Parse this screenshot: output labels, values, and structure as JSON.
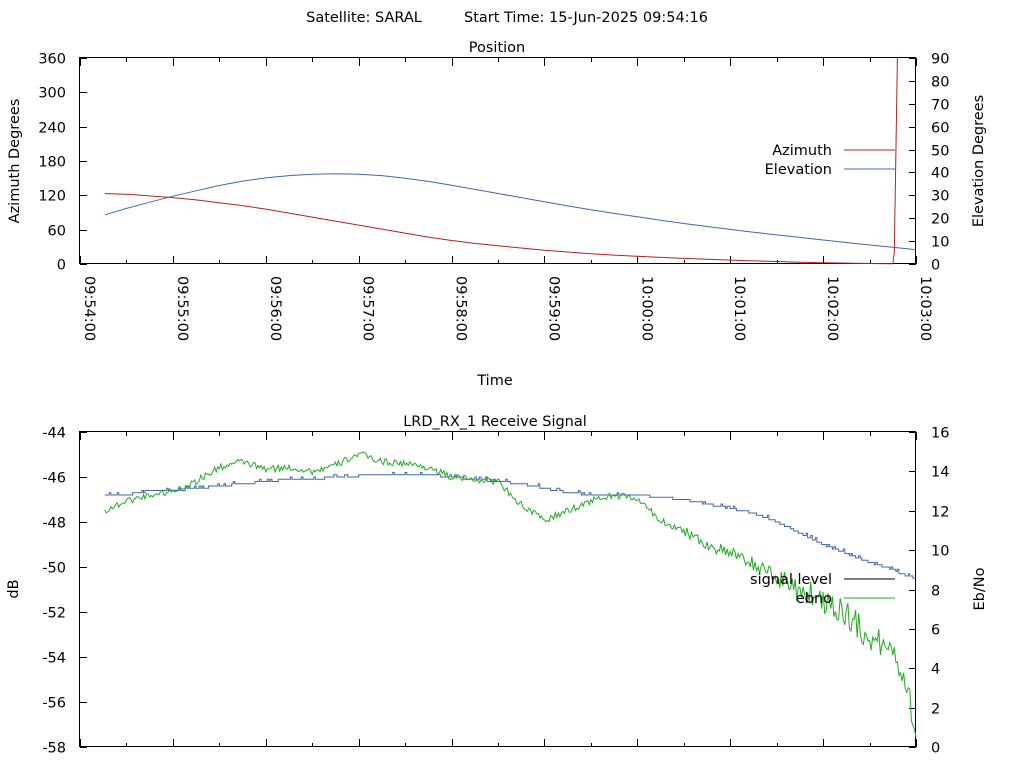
{
  "header": {
    "satellite": "Satellite: SARAL",
    "start_time": "Start Time: 15-Jun-2025 09:54:16"
  },
  "chart_data": [
    {
      "type": "line",
      "title": "Position",
      "xlabel": "Time",
      "ylabel": "Azimuth Degrees",
      "y2label": "Elevation Degrees",
      "xlim": [
        "09:54:00",
        "10:03:00"
      ],
      "ylim": [
        0,
        360
      ],
      "y2lim": [
        0,
        90
      ],
      "x_ticks": [
        "09:54:00",
        "09:55:00",
        "09:56:00",
        "09:57:00",
        "09:58:00",
        "09:59:00",
        "10:00:00",
        "10:01:00",
        "10:02:00",
        "10:03:00"
      ],
      "y_ticks": [
        "0",
        "60",
        "120",
        "180",
        "240",
        "300",
        "360"
      ],
      "y2_ticks": [
        "0",
        "10",
        "20",
        "30",
        "40",
        "50",
        "60",
        "70",
        "80",
        "90"
      ],
      "legend": "right",
      "grid": false,
      "series": [
        {
          "name": "Azimuth",
          "axis": "y",
          "color": "#b22222",
          "x": [
            "09:54:16",
            "09:54:30",
            "09:54:45",
            "09:55:00",
            "09:55:15",
            "09:55:30",
            "09:55:45",
            "09:56:00",
            "09:56:15",
            "09:56:30",
            "09:56:45",
            "09:57:00",
            "09:57:15",
            "09:57:30",
            "09:57:45",
            "09:58:00",
            "09:58:15",
            "09:58:30",
            "09:58:45",
            "09:59:00",
            "09:59:15",
            "09:59:30",
            "09:59:45",
            "10:00:00",
            "10:00:15",
            "10:00:30",
            "10:00:45",
            "10:01:00",
            "10:01:15",
            "10:01:30",
            "10:01:45",
            "10:02:00",
            "10:02:15",
            "10:02:30",
            "10:02:45",
            "10:02:46",
            "10:02:48"
          ],
          "y": [
            123,
            122,
            119,
            116,
            112,
            107,
            102,
            96,
            89,
            82,
            75,
            68,
            61,
            54,
            47,
            41,
            36,
            32,
            28,
            24,
            21,
            18,
            15.5,
            13.5,
            11.5,
            9.8,
            8.2,
            6.8,
            5.5,
            4.3,
            3.2,
            2.3,
            1.5,
            0.8,
            0.3,
            20,
            360
          ]
        },
        {
          "name": "Elevation",
          "axis": "y2",
          "color": "#4169aa",
          "x": [
            "09:54:16",
            "09:54:30",
            "09:54:45",
            "09:55:00",
            "09:55:15",
            "09:55:30",
            "09:55:45",
            "09:56:00",
            "09:56:15",
            "09:56:30",
            "09:56:45",
            "09:57:00",
            "09:57:15",
            "09:57:30",
            "09:57:45",
            "09:58:00",
            "09:58:15",
            "09:58:30",
            "09:58:45",
            "09:59:00",
            "09:59:15",
            "09:59:30",
            "09:59:45",
            "10:00:00",
            "10:00:15",
            "10:00:30",
            "10:00:45",
            "10:01:00",
            "10:01:15",
            "10:01:30",
            "10:01:45",
            "10:02:00",
            "10:02:15",
            "10:02:30",
            "10:02:45",
            "10:03:00"
          ],
          "y": [
            21.5,
            24.3,
            27,
            29.6,
            32,
            34.3,
            36.2,
            37.6,
            38.6,
            39.2,
            39.4,
            39.2,
            38.6,
            37.5,
            36.1,
            34.4,
            32.6,
            30.8,
            29,
            27.2,
            25.4,
            23.7,
            22.1,
            20.6,
            19.1,
            17.7,
            16.4,
            15.1,
            13.9,
            12.7,
            11.6,
            10.5,
            9.4,
            8.3,
            7.3,
            6.2
          ]
        }
      ]
    },
    {
      "type": "line",
      "title": "LRD_RX_1 Receive Signal",
      "ylabel": "dB",
      "y2label": "Eb/No",
      "xlim": [
        "09:54:00",
        "10:03:00"
      ],
      "ylim": [
        -58,
        -44
      ],
      "y2lim": [
        0,
        16
      ],
      "y_ticks": [
        "-44",
        "-46",
        "-48",
        "-50",
        "-52",
        "-54",
        "-56",
        "-58"
      ],
      "y2_ticks": [
        "0",
        "2",
        "4",
        "6",
        "8",
        "10",
        "12",
        "14",
        "16"
      ],
      "legend": "right",
      "grid": false,
      "series": [
        {
          "name": "signal level",
          "axis": "y",
          "color": "#4169aa",
          "x": [
            "09:54:16",
            "09:54:30",
            "09:54:45",
            "09:55:00",
            "09:55:15",
            "09:55:30",
            "09:55:45",
            "09:56:00",
            "09:56:15",
            "09:56:30",
            "09:56:45",
            "09:57:00",
            "09:57:15",
            "09:57:30",
            "09:57:45",
            "09:58:00",
            "09:58:15",
            "09:58:30",
            "09:58:45",
            "09:59:00",
            "09:59:15",
            "09:59:30",
            "09:59:45",
            "10:00:00",
            "10:00:15",
            "10:00:30",
            "10:00:45",
            "10:01:00",
            "10:01:15",
            "10:01:30",
            "10:01:45",
            "10:02:00",
            "10:02:15",
            "10:02:30",
            "10:02:45",
            "10:02:50",
            "10:02:55",
            "10:03:00"
          ],
          "y": [
            -46.8,
            -46.8,
            -46.6,
            -46.6,
            -46.5,
            -46.4,
            -46.3,
            -46.2,
            -46.1,
            -46.1,
            -46.0,
            -45.95,
            -45.9,
            -45.85,
            -45.9,
            -46.0,
            -46.1,
            -46.2,
            -46.3,
            -46.5,
            -46.7,
            -46.8,
            -46.8,
            -46.8,
            -46.9,
            -47.0,
            -47.2,
            -47.4,
            -47.6,
            -48.0,
            -48.5,
            -49.0,
            -49.4,
            -49.8,
            -50.1,
            -50.3,
            -50.4,
            -50.5
          ]
        },
        {
          "name": "ebno",
          "axis": "y2",
          "color": "#22aa22",
          "x": [
            "09:54:16",
            "09:54:30",
            "09:54:45",
            "09:55:00",
            "09:55:15",
            "09:55:30",
            "09:55:45",
            "09:56:00",
            "09:56:15",
            "09:56:30",
            "09:56:45",
            "09:57:00",
            "09:57:15",
            "09:57:30",
            "09:57:45",
            "09:58:00",
            "09:58:15",
            "09:58:30",
            "09:58:45",
            "09:59:00",
            "09:59:15",
            "09:59:30",
            "09:59:45",
            "10:00:00",
            "10:00:15",
            "10:00:30",
            "10:00:45",
            "10:01:00",
            "10:01:15",
            "10:01:30",
            "10:01:45",
            "10:02:00",
            "10:02:15",
            "10:02:30",
            "10:02:45",
            "10:02:55",
            "10:03:00"
          ],
          "y": [
            12,
            12.5,
            12.8,
            13.0,
            13.5,
            14.2,
            14.5,
            14.1,
            14.2,
            14.0,
            14.3,
            14.9,
            14.5,
            14.4,
            14.2,
            13.7,
            13.6,
            13.5,
            12.3,
            11.5,
            12.0,
            12.5,
            12.8,
            12.6,
            11.5,
            11.0,
            10.3,
            9.8,
            9.3,
            8.6,
            8.0,
            7.5,
            6.8,
            5.5,
            5.0,
            3.0,
            0.5
          ]
        }
      ]
    }
  ]
}
